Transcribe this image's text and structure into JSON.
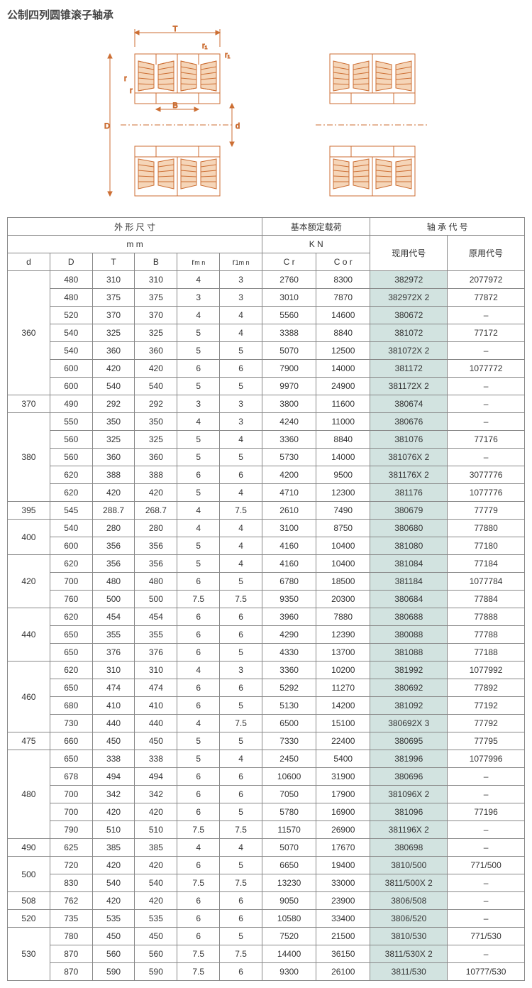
{
  "title": "公制四列圆锥滚子轴承",
  "diagram_labels": {
    "T": "T",
    "r1a": "r₁",
    "r1b": "r₁",
    "r_a": "r",
    "r_b": "r",
    "B": "B",
    "D": "D",
    "d": "d"
  },
  "headers": {
    "group_dim": "外 形 尺 寸",
    "group_load": "基本额定载荷",
    "group_code": "轴 承 代 号",
    "unit_mm": "m m",
    "unit_kn": "K N",
    "d": "d",
    "D": "D",
    "T": "T",
    "B": "B",
    "rmn": "r",
    "rmn_sub": "m n",
    "rlmn": "r",
    "rlmn_sub": "1m n",
    "Cr": "C r",
    "Cor": "C o r",
    "code1": "现用代号",
    "code2": "原用代号"
  },
  "groups": [
    {
      "d": "360",
      "rows": [
        {
          "D": "480",
          "T": "310",
          "B": "310",
          "rmn": "4",
          "rlmn": "3",
          "Cr": "2760",
          "Cor": "8300",
          "c1": "382972",
          "c2": "2077972"
        },
        {
          "D": "480",
          "T": "375",
          "B": "375",
          "rmn": "3",
          "rlmn": "3",
          "Cr": "3010",
          "Cor": "7870",
          "c1": "382972X 2",
          "c2": "77872"
        },
        {
          "D": "520",
          "T": "370",
          "B": "370",
          "rmn": "4",
          "rlmn": "4",
          "Cr": "5560",
          "Cor": "14600",
          "c1": "380672",
          "c2": "–"
        },
        {
          "D": "540",
          "T": "325",
          "B": "325",
          "rmn": "5",
          "rlmn": "4",
          "Cr": "3388",
          "Cor": "8840",
          "c1": "381072",
          "c2": "77172"
        },
        {
          "D": "540",
          "T": "360",
          "B": "360",
          "rmn": "5",
          "rlmn": "5",
          "Cr": "5070",
          "Cor": "12500",
          "c1": "381072X 2",
          "c2": "–"
        },
        {
          "D": "600",
          "T": "420",
          "B": "420",
          "rmn": "6",
          "rlmn": "6",
          "Cr": "7900",
          "Cor": "14000",
          "c1": "381172",
          "c2": "1077772"
        },
        {
          "D": "600",
          "T": "540",
          "B": "540",
          "rmn": "5",
          "rlmn": "5",
          "Cr": "9970",
          "Cor": "24900",
          "c1": "381172X 2",
          "c2": "–"
        }
      ]
    },
    {
      "d": "370",
      "rows": [
        {
          "D": "490",
          "T": "292",
          "B": "292",
          "rmn": "3",
          "rlmn": "3",
          "Cr": "3800",
          "Cor": "11600",
          "c1": "380674",
          "c2": "–"
        }
      ]
    },
    {
      "d": "380",
      "rows": [
        {
          "D": "550",
          "T": "350",
          "B": "350",
          "rmn": "4",
          "rlmn": "3",
          "Cr": "4240",
          "Cor": "11000",
          "c1": "380676",
          "c2": "–"
        },
        {
          "D": "560",
          "T": "325",
          "B": "325",
          "rmn": "5",
          "rlmn": "4",
          "Cr": "3360",
          "Cor": "8840",
          "c1": "381076",
          "c2": "77176"
        },
        {
          "D": "560",
          "T": "360",
          "B": "360",
          "rmn": "5",
          "rlmn": "5",
          "Cr": "5730",
          "Cor": "14000",
          "c1": "381076X 2",
          "c2": "–"
        },
        {
          "D": "620",
          "T": "388",
          "B": "388",
          "rmn": "6",
          "rlmn": "6",
          "Cr": "4200",
          "Cor": "9500",
          "c1": "381176X 2",
          "c2": "3077776"
        },
        {
          "D": "620",
          "T": "420",
          "B": "420",
          "rmn": "5",
          "rlmn": "4",
          "Cr": "4710",
          "Cor": "12300",
          "c1": "381176",
          "c2": "1077776"
        }
      ]
    },
    {
      "d": "395",
      "rows": [
        {
          "D": "545",
          "T": "288.7",
          "B": "268.7",
          "rmn": "4",
          "rlmn": "7.5",
          "Cr": "2610",
          "Cor": "7490",
          "c1": "380679",
          "c2": "77779"
        }
      ]
    },
    {
      "d": "400",
      "rows": [
        {
          "D": "540",
          "T": "280",
          "B": "280",
          "rmn": "4",
          "rlmn": "4",
          "Cr": "3100",
          "Cor": "8750",
          "c1": "380680",
          "c2": "77880"
        },
        {
          "D": "600",
          "T": "356",
          "B": "356",
          "rmn": "5",
          "rlmn": "4",
          "Cr": "4160",
          "Cor": "10400",
          "c1": "381080",
          "c2": "77180"
        }
      ]
    },
    {
      "d": "420",
      "rows": [
        {
          "D": "620",
          "T": "356",
          "B": "356",
          "rmn": "5",
          "rlmn": "4",
          "Cr": "4160",
          "Cor": "10400",
          "c1": "381084",
          "c2": "77184"
        },
        {
          "D": "700",
          "T": "480",
          "B": "480",
          "rmn": "6",
          "rlmn": "5",
          "Cr": "6780",
          "Cor": "18500",
          "c1": "381184",
          "c2": "1077784"
        },
        {
          "D": "760",
          "T": "500",
          "B": "500",
          "rmn": "7.5",
          "rlmn": "7.5",
          "Cr": "9350",
          "Cor": "20300",
          "c1": "380684",
          "c2": "77884"
        }
      ]
    },
    {
      "d": "440",
      "rows": [
        {
          "D": "620",
          "T": "454",
          "B": "454",
          "rmn": "6",
          "rlmn": "6",
          "Cr": "3960",
          "Cor": "7880",
          "c1": "380688",
          "c2": "77888"
        },
        {
          "D": "650",
          "T": "355",
          "B": "355",
          "rmn": "6",
          "rlmn": "6",
          "Cr": "4290",
          "Cor": "12390",
          "c1": "380088",
          "c2": "77788"
        },
        {
          "D": "650",
          "T": "376",
          "B": "376",
          "rmn": "6",
          "rlmn": "5",
          "Cr": "4330",
          "Cor": "13700",
          "c1": "381088",
          "c2": "77188"
        }
      ]
    },
    {
      "d": "460",
      "rows": [
        {
          "D": "620",
          "T": "310",
          "B": "310",
          "rmn": "4",
          "rlmn": "3",
          "Cr": "3360",
          "Cor": "10200",
          "c1": "381992",
          "c2": "1077992"
        },
        {
          "D": "650",
          "T": "474",
          "B": "474",
          "rmn": "6",
          "rlmn": "6",
          "Cr": "5292",
          "Cor": "11270",
          "c1": "380692",
          "c2": "77892"
        },
        {
          "D": "680",
          "T": "410",
          "B": "410",
          "rmn": "6",
          "rlmn": "5",
          "Cr": "5130",
          "Cor": "14200",
          "c1": "381092",
          "c2": "77192"
        },
        {
          "D": "730",
          "T": "440",
          "B": "440",
          "rmn": "4",
          "rlmn": "7.5",
          "Cr": "6500",
          "Cor": "15100",
          "c1": "380692X 3",
          "c2": "77792"
        }
      ]
    },
    {
      "d": "475",
      "rows": [
        {
          "D": "660",
          "T": "450",
          "B": "450",
          "rmn": "5",
          "rlmn": "5",
          "Cr": "7330",
          "Cor": "22400",
          "c1": "380695",
          "c2": "77795"
        }
      ]
    },
    {
      "d": "480",
      "rows": [
        {
          "D": "650",
          "T": "338",
          "B": "338",
          "rmn": "5",
          "rlmn": "4",
          "Cr": "2450",
          "Cor": "5400",
          "c1": "381996",
          "c2": "1077996"
        },
        {
          "D": "678",
          "T": "494",
          "B": "494",
          "rmn": "6",
          "rlmn": "6",
          "Cr": "10600",
          "Cor": "31900",
          "c1": "380696",
          "c2": "–"
        },
        {
          "D": "700",
          "T": "342",
          "B": "342",
          "rmn": "6",
          "rlmn": "6",
          "Cr": "7050",
          "Cor": "17900",
          "c1": "381096X 2",
          "c2": "–"
        },
        {
          "D": "700",
          "T": "420",
          "B": "420",
          "rmn": "6",
          "rlmn": "5",
          "Cr": "5780",
          "Cor": "16900",
          "c1": "381096",
          "c2": "77196"
        },
        {
          "D": "790",
          "T": "510",
          "B": "510",
          "rmn": "7.5",
          "rlmn": "7.5",
          "Cr": "11570",
          "Cor": "26900",
          "c1": "381196X 2",
          "c2": "–"
        }
      ]
    },
    {
      "d": "490",
      "rows": [
        {
          "D": "625",
          "T": "385",
          "B": "385",
          "rmn": "4",
          "rlmn": "4",
          "Cr": "5070",
          "Cor": "17670",
          "c1": "380698",
          "c2": "–"
        }
      ]
    },
    {
      "d": "500",
      "rows": [
        {
          "D": "720",
          "T": "420",
          "B": "420",
          "rmn": "6",
          "rlmn": "5",
          "Cr": "6650",
          "Cor": "19400",
          "c1": "3810/500",
          "c2": "771/500"
        },
        {
          "D": "830",
          "T": "540",
          "B": "540",
          "rmn": "7.5",
          "rlmn": "7.5",
          "Cr": "13230",
          "Cor": "33000",
          "c1": "3811/500X 2",
          "c2": "–"
        }
      ]
    },
    {
      "d": "508",
      "rows": [
        {
          "D": "762",
          "T": "420",
          "B": "420",
          "rmn": "6",
          "rlmn": "6",
          "Cr": "9050",
          "Cor": "23900",
          "c1": "3806/508",
          "c2": "–"
        }
      ]
    },
    {
      "d": "520",
      "rows": [
        {
          "D": "735",
          "T": "535",
          "B": "535",
          "rmn": "6",
          "rlmn": "6",
          "Cr": "10580",
          "Cor": "33400",
          "c1": "3806/520",
          "c2": "–"
        }
      ]
    },
    {
      "d": "530",
      "rows": [
        {
          "D": "780",
          "T": "450",
          "B": "450",
          "rmn": "6",
          "rlmn": "5",
          "Cr": "7520",
          "Cor": "21500",
          "c1": "3810/530",
          "c2": "771/530"
        },
        {
          "D": "870",
          "T": "560",
          "B": "560",
          "rmn": "7.5",
          "rlmn": "7.5",
          "Cr": "14400",
          "Cor": "36150",
          "c1": "3811/530X 2",
          "c2": "–"
        },
        {
          "D": "870",
          "T": "590",
          "B": "590",
          "rmn": "7.5",
          "rlmn": "6",
          "Cr": "9300",
          "Cor": "26100",
          "c1": "3811/530",
          "c2": "10777/530"
        }
      ]
    }
  ],
  "diagram_style": {
    "stroke": "#cc6e33",
    "stroke_width": 1,
    "hatch": "#cc6e33",
    "text_color": "#333"
  }
}
